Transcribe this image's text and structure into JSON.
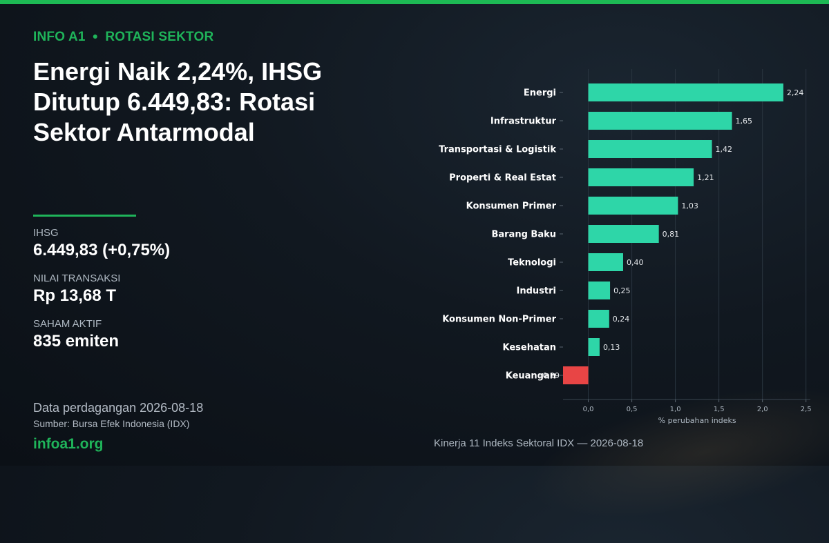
{
  "header": {
    "kicker_left": "INFO A1",
    "kicker_right": "ROTASI SEKTOR",
    "headline": "Energi Naik 2,24%, IHSG Ditutup 6.449,83: Rotasi Sektor Antarmodal"
  },
  "stats": [
    {
      "label": "IHSG",
      "value": "6.449,83  (+0,75%)"
    },
    {
      "label": "NILAI TRANSAKSI",
      "value": "Rp 13,68 T"
    },
    {
      "label": "SAHAM AKTIF",
      "value": "835 emiten"
    }
  ],
  "footer": {
    "date": "Data perdagangan 2026-08-18",
    "source": "Sumber: Bursa Efek Indonesia (IDX)",
    "site": "infoa1.org"
  },
  "caption": "Kinerja 11 Indeks Sektoral IDX — 2026-08-18",
  "colors": {
    "accent": "#1fb45a",
    "positive": "#2ed6a8",
    "negative": "#e84545"
  },
  "chart_data": {
    "type": "bar",
    "orientation": "horizontal",
    "categories": [
      "Energi",
      "Infrastruktur",
      "Transportasi & Logistik",
      "Properti & Real Estat",
      "Konsumen Primer",
      "Barang Baku",
      "Teknologi",
      "Industri",
      "Konsumen Non-Primer",
      "Kesehatan",
      "Keuangan"
    ],
    "values": [
      2.24,
      1.65,
      1.42,
      1.21,
      1.03,
      0.81,
      0.4,
      0.25,
      0.24,
      0.13,
      -0.29
    ],
    "value_labels": [
      "2,24",
      "1,65",
      "1,42",
      "1,21",
      "1,03",
      "0,81",
      "0,40",
      "0,25",
      "0,24",
      "0,13",
      "-0,29"
    ],
    "xlabel": "% perubahan indeks",
    "ylabel": "",
    "xlim": [
      -0.29,
      2.55
    ],
    "xticks": [
      0,
      0.5,
      1,
      1.5,
      2,
      2.5
    ],
    "xtick_labels": [
      "0,0",
      "0,5",
      "1,0",
      "1,5",
      "2,0",
      "2,5"
    ],
    "grid": "vertical",
    "legend": "none"
  }
}
